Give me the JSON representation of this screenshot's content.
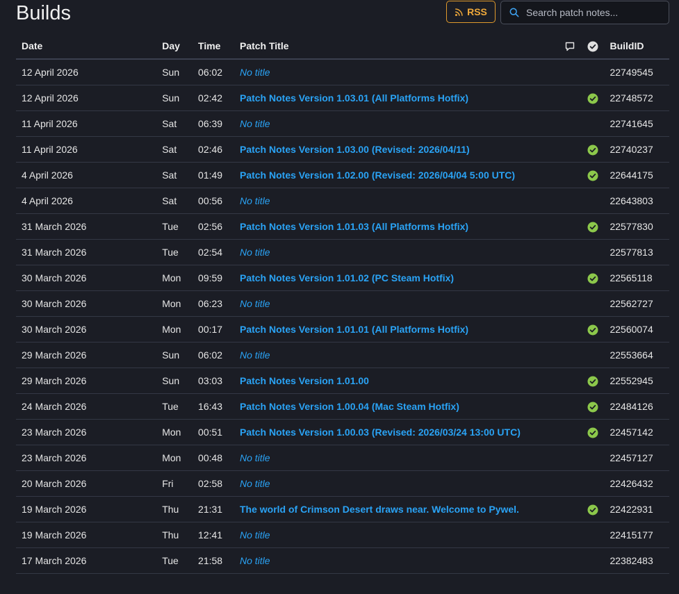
{
  "page": {
    "title": "Builds"
  },
  "toolbar": {
    "rss_label": "RSS",
    "search_placeholder": "Search patch notes..."
  },
  "table": {
    "columns": {
      "date": "Date",
      "day": "Day",
      "time": "Time",
      "title": "Patch Title",
      "buildid": "BuildID"
    },
    "rows": [
      {
        "date": "12 April 2026",
        "day": "Sun",
        "time": "06:02",
        "title": "No title",
        "has_title": false,
        "verified": false,
        "buildid": "22749545"
      },
      {
        "date": "12 April 2026",
        "day": "Sun",
        "time": "02:42",
        "title": "Patch Notes Version 1.03.01 (All Platforms Hotfix)",
        "has_title": true,
        "verified": true,
        "buildid": "22748572"
      },
      {
        "date": "11 April 2026",
        "day": "Sat",
        "time": "06:39",
        "title": "No title",
        "has_title": false,
        "verified": false,
        "buildid": "22741645"
      },
      {
        "date": "11 April 2026",
        "day": "Sat",
        "time": "02:46",
        "title": "Patch Notes Version 1.03.00 (Revised: 2026/04/11)",
        "has_title": true,
        "verified": true,
        "buildid": "22740237"
      },
      {
        "date": "4 April 2026",
        "day": "Sat",
        "time": "01:49",
        "title": "Patch Notes Version 1.02.00 (Revised: 2026/04/04 5:00 UTC)",
        "has_title": true,
        "verified": true,
        "buildid": "22644175"
      },
      {
        "date": "4 April 2026",
        "day": "Sat",
        "time": "00:56",
        "title": "No title",
        "has_title": false,
        "verified": false,
        "buildid": "22643803"
      },
      {
        "date": "31 March 2026",
        "day": "Tue",
        "time": "02:56",
        "title": "Patch Notes Version 1.01.03 (All Platforms Hotfix)",
        "has_title": true,
        "verified": true,
        "buildid": "22577830"
      },
      {
        "date": "31 March 2026",
        "day": "Tue",
        "time": "02:54",
        "title": "No title",
        "has_title": false,
        "verified": false,
        "buildid": "22577813"
      },
      {
        "date": "30 March 2026",
        "day": "Mon",
        "time": "09:59",
        "title": "Patch Notes Version 1.01.02 (PC Steam Hotfix)",
        "has_title": true,
        "verified": true,
        "buildid": "22565118"
      },
      {
        "date": "30 March 2026",
        "day": "Mon",
        "time": "06:23",
        "title": "No title",
        "has_title": false,
        "verified": false,
        "buildid": "22562727"
      },
      {
        "date": "30 March 2026",
        "day": "Mon",
        "time": "00:17",
        "title": "Patch Notes Version 1.01.01 (All Platforms Hotfix)",
        "has_title": true,
        "verified": true,
        "buildid": "22560074"
      },
      {
        "date": "29 March 2026",
        "day": "Sun",
        "time": "06:02",
        "title": "No title",
        "has_title": false,
        "verified": false,
        "buildid": "22553664"
      },
      {
        "date": "29 March 2026",
        "day": "Sun",
        "time": "03:03",
        "title": "Patch Notes Version 1.01.00",
        "has_title": true,
        "verified": true,
        "buildid": "22552945"
      },
      {
        "date": "24 March 2026",
        "day": "Tue",
        "time": "16:43",
        "title": "Patch Notes Version 1.00.04 (Mac Steam Hotfix)",
        "has_title": true,
        "verified": true,
        "buildid": "22484126"
      },
      {
        "date": "23 March 2026",
        "day": "Mon",
        "time": "00:51",
        "title": "Patch Notes Version 1.00.03 (Revised: 2026/03/24 13:00 UTC)",
        "has_title": true,
        "verified": true,
        "buildid": "22457142"
      },
      {
        "date": "23 March 2026",
        "day": "Mon",
        "time": "00:48",
        "title": "No title",
        "has_title": false,
        "verified": false,
        "buildid": "22457127"
      },
      {
        "date": "20 March 2026",
        "day": "Fri",
        "time": "02:58",
        "title": "No title",
        "has_title": false,
        "verified": false,
        "buildid": "22426432"
      },
      {
        "date": "19 March 2026",
        "day": "Thu",
        "time": "21:31",
        "title": "The world of Crimson Desert draws near. Welcome to Pywel.",
        "has_title": true,
        "verified": true,
        "buildid": "22422931"
      },
      {
        "date": "19 March 2026",
        "day": "Thu",
        "time": "12:41",
        "title": "No title",
        "has_title": false,
        "verified": false,
        "buildid": "22415177"
      },
      {
        "date": "17 March 2026",
        "day": "Tue",
        "time": "21:58",
        "title": "No title",
        "has_title": false,
        "verified": false,
        "buildid": "22382483"
      }
    ]
  },
  "colors": {
    "background": "#1b1d25",
    "link": "#2aa3f5",
    "rss_accent": "#f0a93a",
    "check_green": "#8cc84b"
  },
  "icons": {
    "rss": "rss-icon",
    "search": "search-icon",
    "comments": "comment-icon",
    "verified_header": "check-circle-icon",
    "verified": "check-circle-icon"
  }
}
